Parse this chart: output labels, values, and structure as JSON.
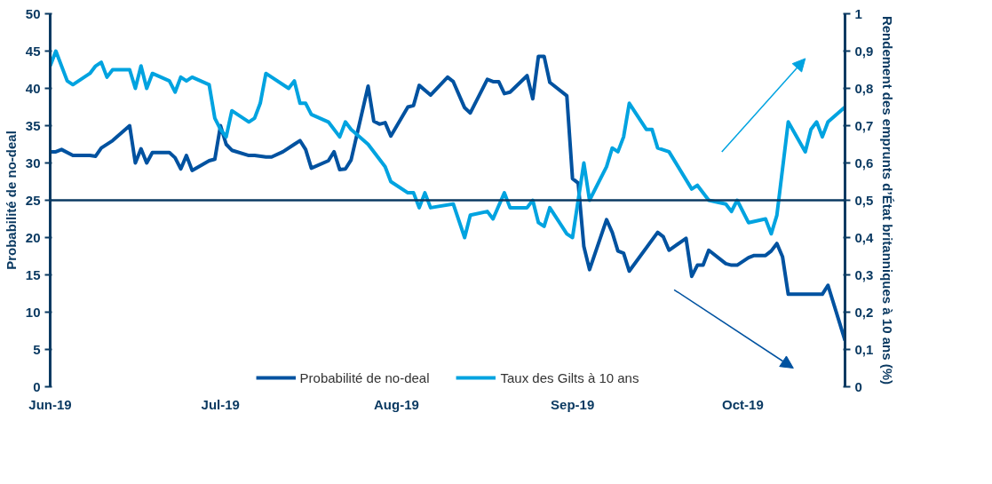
{
  "chart_data": {
    "type": "line",
    "ylabel": "Probabilité de no-deal",
    "y2label": "Rendement des emprunts d’État britanniques à 10 ans (%)",
    "xlim": [
      "2019-06-01",
      "2019-10-19"
    ],
    "xticks": [
      {
        "value": "2019-06-01",
        "label": "Jun-19"
      },
      {
        "value": "2019-07-01",
        "label": "Jul-19"
      },
      {
        "value": "2019-08-01",
        "label": "Aug-19"
      },
      {
        "value": "2019-09-01",
        "label": "Sep-19"
      },
      {
        "value": "2019-10-01",
        "label": "Oct-19"
      }
    ],
    "ylim": [
      0,
      50
    ],
    "yticks": [
      0,
      5,
      10,
      15,
      20,
      25,
      30,
      35,
      40,
      45,
      50
    ],
    "y2lim": [
      0,
      1
    ],
    "y2ticks": [
      0,
      {
        "value": 0.1,
        "label": "0,1"
      },
      {
        "value": 0.2,
        "label": "0,2"
      },
      {
        "value": 0.3,
        "label": "0,3"
      },
      {
        "value": 0.4,
        "label": "0,4"
      },
      {
        "value": 0.5,
        "label": "0,5"
      },
      {
        "value": 0.6,
        "label": "0,6"
      },
      {
        "value": 0.7,
        "label": "0,7"
      },
      {
        "value": 0.8,
        "label": "0,8"
      },
      {
        "value": 0.9,
        "label": "0,9"
      },
      1
    ],
    "ref_lines": [
      {
        "axis": "y",
        "value": 25,
        "color": "#0b3a62"
      }
    ],
    "grid": false,
    "legend": "bottom",
    "marker": "none",
    "line_style": "solid",
    "series": [
      {
        "name": "Probabilité de no-deal",
        "color": "#0052a0",
        "x": [
          "2019-06-01",
          "2019-06-02",
          "2019-06-03",
          "2019-06-05",
          "2019-06-08",
          "2019-06-09",
          "2019-06-10",
          "2019-06-12",
          "2019-06-15",
          "2019-06-16",
          "2019-06-17",
          "2019-06-18",
          "2019-06-19",
          "2019-06-22",
          "2019-06-23",
          "2019-06-24",
          "2019-06-25",
          "2019-06-26",
          "2019-06-29",
          "2019-06-30",
          "2019-07-01",
          "2019-07-02",
          "2019-07-03",
          "2019-07-06",
          "2019-07-07",
          "2019-07-09",
          "2019-07-10",
          "2019-07-12",
          "2019-07-14",
          "2019-07-15",
          "2019-07-16",
          "2019-07-17",
          "2019-07-20",
          "2019-07-21",
          "2019-07-22",
          "2019-07-23",
          "2019-07-24",
          "2019-07-27",
          "2019-07-28",
          "2019-07-29",
          "2019-07-30",
          "2019-07-31",
          "2019-08-03",
          "2019-08-04",
          "2019-08-05",
          "2019-08-07",
          "2019-08-10",
          "2019-08-11",
          "2019-08-13",
          "2019-08-14",
          "2019-08-17",
          "2019-08-18",
          "2019-08-19",
          "2019-08-20",
          "2019-08-21",
          "2019-08-24",
          "2019-08-25",
          "2019-08-26",
          "2019-08-27",
          "2019-08-28",
          "2019-08-31",
          "2019-09-01",
          "2019-09-02",
          "2019-09-03",
          "2019-09-04",
          "2019-09-07",
          "2019-09-08",
          "2019-09-09",
          "2019-09-10",
          "2019-09-11",
          "2019-09-16",
          "2019-09-17",
          "2019-09-18",
          "2019-09-21",
          "2019-09-22",
          "2019-09-23",
          "2019-09-24",
          "2019-09-25",
          "2019-09-28",
          "2019-09-29",
          "2019-09-30",
          "2019-10-02",
          "2019-10-03",
          "2019-10-05",
          "2019-10-06",
          "2019-10-07",
          "2019-10-08",
          "2019-10-09",
          "2019-10-15",
          "2019-10-16",
          "2019-10-19"
        ],
        "values": [
          31.5,
          31.5,
          31.8,
          31.0,
          31.0,
          30.9,
          32.0,
          33.0,
          35.0,
          30.0,
          31.9,
          30.0,
          31.4,
          31.4,
          30.7,
          29.2,
          31.0,
          29.0,
          30.3,
          30.5,
          35.0,
          32.5,
          31.7,
          31.0,
          31.0,
          30.8,
          30.8,
          31.5,
          32.5,
          33.0,
          31.8,
          29.3,
          30.3,
          31.5,
          29.1,
          29.2,
          30.4,
          40.3,
          35.6,
          35.2,
          35.4,
          33.6,
          37.5,
          37.7,
          40.4,
          39.1,
          41.5,
          40.9,
          37.4,
          36.7,
          41.2,
          40.9,
          40.9,
          39.3,
          39.5,
          41.7,
          38.6,
          44.3,
          44.3,
          40.8,
          39.0,
          27.9,
          27.3,
          18.8,
          15.7,
          22.4,
          20.7,
          18.2,
          17.9,
          15.5,
          20.7,
          20.1,
          18.3,
          19.9,
          14.8,
          16.3,
          16.3,
          18.3,
          16.5,
          16.3,
          16.3,
          17.3,
          17.6,
          17.6,
          18.2,
          19.2,
          17.4,
          12.4,
          12.4,
          13.6,
          6.2
        ]
      },
      {
        "name": "Taux des Gilts à 10 ans",
        "color": "#00a3e0",
        "axis": "y2",
        "x": [
          "2019-06-01",
          "2019-06-02",
          "2019-06-04",
          "2019-06-05",
          "2019-06-08",
          "2019-06-09",
          "2019-06-10",
          "2019-06-11",
          "2019-06-12",
          "2019-06-15",
          "2019-06-16",
          "2019-06-17",
          "2019-06-18",
          "2019-06-19",
          "2019-06-22",
          "2019-06-23",
          "2019-06-24",
          "2019-06-25",
          "2019-06-26",
          "2019-06-29",
          "2019-06-30",
          "2019-07-01",
          "2019-07-02",
          "2019-07-03",
          "2019-07-06",
          "2019-07-07",
          "2019-07-08",
          "2019-07-09",
          "2019-07-10",
          "2019-07-13",
          "2019-07-14",
          "2019-07-15",
          "2019-07-16",
          "2019-07-17",
          "2019-07-20",
          "2019-07-22",
          "2019-07-23",
          "2019-07-24",
          "2019-07-27",
          "2019-07-30",
          "2019-07-31",
          "2019-08-03",
          "2019-08-04",
          "2019-08-05",
          "2019-08-06",
          "2019-08-07",
          "2019-08-11",
          "2019-08-13",
          "2019-08-14",
          "2019-08-17",
          "2019-08-18",
          "2019-08-20",
          "2019-08-21",
          "2019-08-24",
          "2019-08-25",
          "2019-08-26",
          "2019-08-27",
          "2019-08-28",
          "2019-08-31",
          "2019-09-01",
          "2019-09-03",
          "2019-09-04",
          "2019-09-07",
          "2019-09-08",
          "2019-09-09",
          "2019-09-10",
          "2019-09-11",
          "2019-09-14",
          "2019-09-15",
          "2019-09-16",
          "2019-09-18",
          "2019-09-22",
          "2019-09-23",
          "2019-09-25",
          "2019-09-28",
          "2019-09-29",
          "2019-09-30",
          "2019-10-02",
          "2019-10-05",
          "2019-10-06",
          "2019-10-07",
          "2019-10-09",
          "2019-10-12",
          "2019-10-13",
          "2019-10-14",
          "2019-10-15",
          "2019-10-16",
          "2019-10-19"
        ],
        "values": [
          0.86,
          0.9,
          0.82,
          0.81,
          0.84,
          0.86,
          0.87,
          0.83,
          0.85,
          0.85,
          0.8,
          0.86,
          0.8,
          0.84,
          0.82,
          0.79,
          0.83,
          0.82,
          0.83,
          0.81,
          0.72,
          0.69,
          0.67,
          0.74,
          0.71,
          0.72,
          0.76,
          0.84,
          0.83,
          0.8,
          0.82,
          0.76,
          0.76,
          0.73,
          0.71,
          0.67,
          0.71,
          0.69,
          0.65,
          0.59,
          0.55,
          0.52,
          0.52,
          0.48,
          0.52,
          0.48,
          0.49,
          0.4,
          0.46,
          0.47,
          0.45,
          0.52,
          0.48,
          0.48,
          0.5,
          0.44,
          0.43,
          0.48,
          0.41,
          0.4,
          0.6,
          0.5,
          0.59,
          0.64,
          0.63,
          0.67,
          0.76,
          0.69,
          0.69,
          0.64,
          0.63,
          0.53,
          0.54,
          0.5,
          0.49,
          0.47,
          0.5,
          0.44,
          0.45,
          0.41,
          0.46,
          0.71,
          0.63,
          0.69,
          0.71,
          0.67,
          0.71,
          0.75
        ]
      }
    ]
  }
}
